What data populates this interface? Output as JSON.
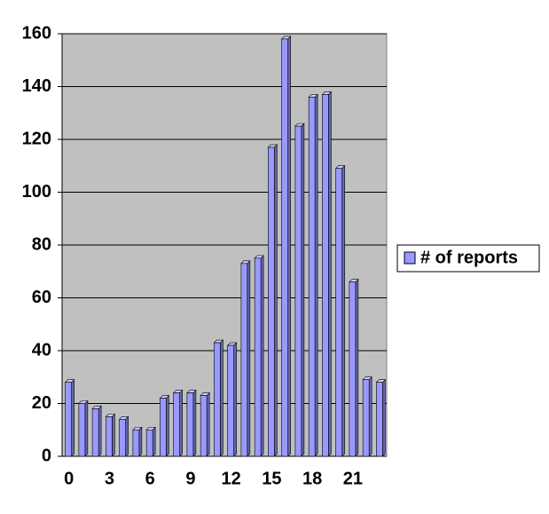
{
  "chart_data": {
    "type": "bar",
    "categories": [
      "0",
      null,
      null,
      "3",
      null,
      null,
      "6",
      null,
      null,
      "9",
      null,
      null,
      "12",
      null,
      null,
      "15",
      null,
      null,
      "18",
      null,
      null,
      "21",
      null,
      null
    ],
    "series": [
      {
        "name": "# of reports",
        "color": "#9999ff",
        "values": [
          28,
          20,
          18,
          15,
          14,
          10,
          10,
          22,
          24,
          24,
          23,
          43,
          42,
          73,
          75,
          117,
          158,
          125,
          136,
          137,
          109,
          66,
          29,
          28
        ]
      }
    ],
    "ylim": [
      0,
      160
    ],
    "yticks": [
      0,
      20,
      40,
      60,
      80,
      100,
      120,
      140,
      160
    ],
    "grid": true,
    "legend": "right"
  }
}
